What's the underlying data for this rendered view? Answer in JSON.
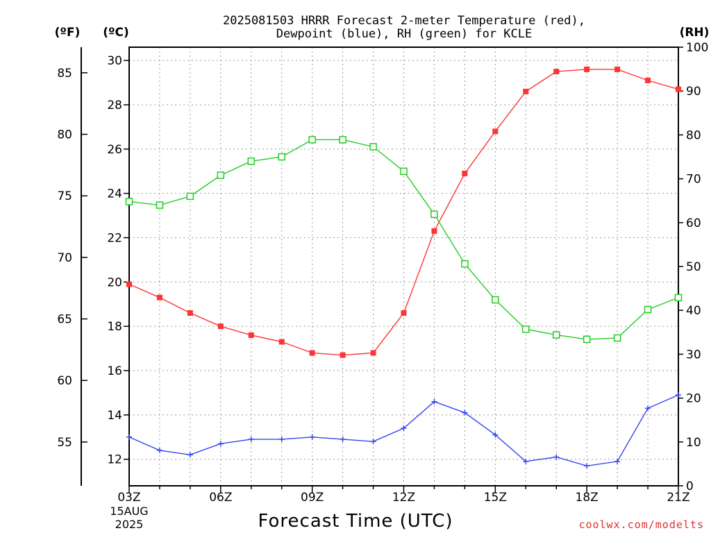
{
  "chart_data": {
    "type": "line",
    "title_line1": "2025081503 HRRR Forecast 2-meter Temperature (red),",
    "title_line2": "Dewpoint (blue), RH (green) for KCLE",
    "xlabel": "Forecast Time (UTC)",
    "unit_f": "(ºF)",
    "unit_c": "(ºC)",
    "unit_rh": "(RH)",
    "date_label_line1": "15AUG",
    "date_label_line2": "2025",
    "credit": "coolwx.com/modelts",
    "x": [
      "03Z",
      "04Z",
      "05Z",
      "06Z",
      "07Z",
      "08Z",
      "09Z",
      "10Z",
      "11Z",
      "12Z",
      "13Z",
      "14Z",
      "15Z",
      "16Z",
      "17Z",
      "18Z",
      "19Z",
      "20Z",
      "21Z"
    ],
    "x_tick_labels": [
      "03Z",
      "06Z",
      "09Z",
      "12Z",
      "15Z",
      "18Z",
      "21Z"
    ],
    "yleft_c_ticks": [
      12,
      14,
      16,
      18,
      20,
      22,
      24,
      26,
      28,
      30
    ],
    "yleft_c_range": [
      10.8,
      30.6
    ],
    "yfar_left_f_ticks": [
      55,
      60,
      65,
      70,
      75,
      80,
      85
    ],
    "yright_rh_ticks": [
      0,
      10,
      20,
      30,
      40,
      50,
      60,
      70,
      80,
      90,
      100
    ],
    "yright_rh_range": [
      0,
      100
    ],
    "grid": true,
    "colors": {
      "temperature": "#ff3333",
      "dewpoint": "#3344ee",
      "rh": "#22cc22"
    },
    "series": [
      {
        "key": "temperature",
        "axis": "C",
        "marker": "filled-square",
        "values": [
          19.9,
          19.3,
          18.6,
          18.0,
          17.6,
          17.3,
          16.8,
          16.7,
          16.8,
          18.6,
          22.3,
          24.9,
          26.8,
          28.6,
          29.5,
          29.6,
          29.6,
          29.1,
          28.7
        ]
      },
      {
        "key": "dewpoint",
        "axis": "C",
        "marker": "plus",
        "values": [
          13.0,
          12.4,
          12.2,
          12.7,
          12.9,
          12.9,
          13.0,
          12.9,
          12.8,
          13.4,
          14.6,
          14.1,
          13.1,
          11.9,
          12.1,
          11.7,
          11.9,
          14.3,
          14.9
        ]
      },
      {
        "key": "rh",
        "axis": "RH",
        "marker": "open-square",
        "values": [
          64.8,
          64.0,
          66.0,
          70.8,
          74.0,
          75.0,
          78.9,
          78.9,
          77.3,
          71.7,
          61.9,
          50.6,
          42.4,
          35.7,
          34.4,
          33.4,
          33.7,
          40.2,
          42.9
        ]
      }
    ]
  }
}
